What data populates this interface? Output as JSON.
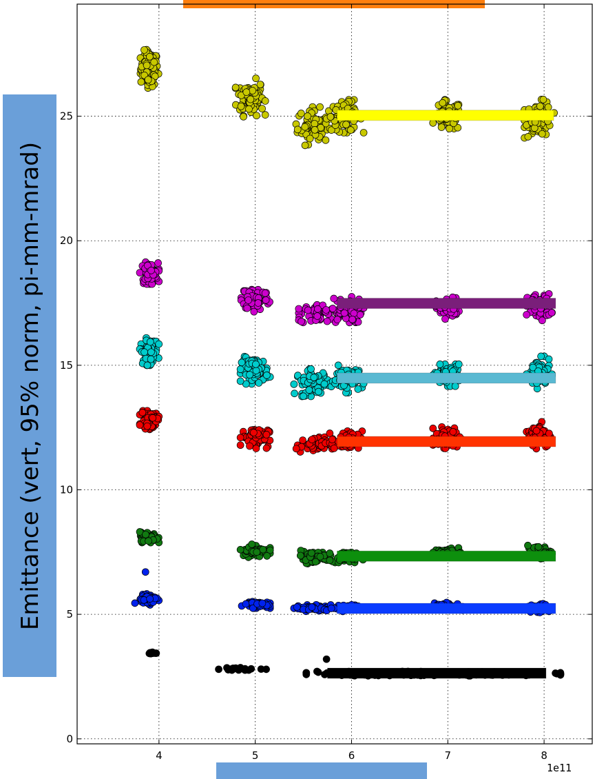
{
  "chart_data": {
    "type": "scatter",
    "xlabel": "",
    "ylabel": "Emittance (vert, 95% norm, pi-mm-mrad)",
    "x_multiplier_label": "1e11",
    "xlim": [
      3.15,
      8.5
    ],
    "ylim": [
      -0.2,
      29.5
    ],
    "xticks": [
      4,
      5,
      6,
      7,
      8
    ],
    "yticks": [
      0,
      5,
      10,
      15,
      20,
      25
    ],
    "grid": true,
    "colors": {
      "ylabel_box": "#6a9fd9",
      "xlabel_box": "#6a9fd9",
      "title_box": "#ff7f0e"
    },
    "series": [
      {
        "color": "#c8c800",
        "clusters": [
          {
            "x": 3.9,
            "y": 26.9,
            "n": 110,
            "sx": 0.045,
            "sy": 0.35
          },
          {
            "x": 4.95,
            "y": 25.75,
            "n": 90,
            "sx": 0.07,
            "sy": 0.35
          },
          {
            "x": 5.6,
            "y": 24.6,
            "n": 70,
            "sx": 0.08,
            "sy": 0.35
          },
          {
            "x": 5.95,
            "y": 25.0,
            "n": 90,
            "sx": 0.08,
            "sy": 0.3
          },
          {
            "x": 7.0,
            "y": 25.0,
            "n": 70,
            "sx": 0.07,
            "sy": 0.3
          },
          {
            "x": 7.95,
            "y": 24.9,
            "n": 70,
            "sx": 0.07,
            "sy": 0.35
          }
        ],
        "fit": {
          "x1": 5.85,
          "x2": 8.1,
          "y": 25.05,
          "color": "#ffff00"
        }
      },
      {
        "color": "#cc00cc",
        "clusters": [
          {
            "x": 3.9,
            "y": 18.7,
            "n": 90,
            "sx": 0.045,
            "sy": 0.2
          },
          {
            "x": 5.0,
            "y": 17.7,
            "n": 80,
            "sx": 0.07,
            "sy": 0.25
          },
          {
            "x": 5.65,
            "y": 17.05,
            "n": 50,
            "sx": 0.09,
            "sy": 0.2
          },
          {
            "x": 5.95,
            "y": 17.2,
            "n": 80,
            "sx": 0.08,
            "sy": 0.25
          },
          {
            "x": 7.0,
            "y": 17.3,
            "n": 60,
            "sx": 0.06,
            "sy": 0.2
          },
          {
            "x": 7.95,
            "y": 17.35,
            "n": 70,
            "sx": 0.06,
            "sy": 0.25
          }
        ],
        "fit": {
          "x1": 5.85,
          "x2": 8.12,
          "y": 17.5,
          "color": "#7a1f7a"
        }
      },
      {
        "color": "#00cccc",
        "clusters": [
          {
            "x": 3.9,
            "y": 15.55,
            "n": 80,
            "sx": 0.045,
            "sy": 0.25
          },
          {
            "x": 5.0,
            "y": 14.8,
            "n": 80,
            "sx": 0.07,
            "sy": 0.25
          },
          {
            "x": 5.6,
            "y": 14.3,
            "n": 60,
            "sx": 0.09,
            "sy": 0.25
          },
          {
            "x": 5.95,
            "y": 14.45,
            "n": 70,
            "sx": 0.08,
            "sy": 0.25
          },
          {
            "x": 7.0,
            "y": 14.6,
            "n": 70,
            "sx": 0.07,
            "sy": 0.2
          },
          {
            "x": 7.95,
            "y": 14.7,
            "n": 70,
            "sx": 0.06,
            "sy": 0.3
          }
        ],
        "fit": {
          "x1": 5.85,
          "x2": 8.12,
          "y": 14.5,
          "color": "#5ab9d2"
        }
      },
      {
        "color": "#ee0000",
        "clusters": [
          {
            "x": 3.9,
            "y": 12.8,
            "n": 70,
            "sx": 0.045,
            "sy": 0.17
          },
          {
            "x": 5.0,
            "y": 12.1,
            "n": 70,
            "sx": 0.07,
            "sy": 0.2
          },
          {
            "x": 5.6,
            "y": 11.8,
            "n": 50,
            "sx": 0.09,
            "sy": 0.15
          },
          {
            "x": 5.95,
            "y": 11.95,
            "n": 60,
            "sx": 0.08,
            "sy": 0.2
          },
          {
            "x": 7.0,
            "y": 12.1,
            "n": 60,
            "sx": 0.07,
            "sy": 0.2
          },
          {
            "x": 7.95,
            "y": 12.2,
            "n": 70,
            "sx": 0.06,
            "sy": 0.25
          }
        ],
        "fit": {
          "x1": 5.85,
          "x2": 8.12,
          "y": 11.95,
          "color": "#ff3300"
        }
      },
      {
        "color": "#117a11",
        "clusters": [
          {
            "x": 3.9,
            "y": 8.1,
            "n": 70,
            "sx": 0.045,
            "sy": 0.1
          },
          {
            "x": 5.0,
            "y": 7.55,
            "n": 70,
            "sx": 0.07,
            "sy": 0.12
          },
          {
            "x": 5.6,
            "y": 7.3,
            "n": 60,
            "sx": 0.09,
            "sy": 0.12
          },
          {
            "x": 5.95,
            "y": 7.3,
            "n": 60,
            "sx": 0.08,
            "sy": 0.1
          },
          {
            "x": 7.0,
            "y": 7.45,
            "n": 60,
            "sx": 0.07,
            "sy": 0.1
          },
          {
            "x": 7.95,
            "y": 7.5,
            "n": 60,
            "sx": 0.06,
            "sy": 0.12
          }
        ],
        "fit": {
          "x1": 5.85,
          "x2": 8.12,
          "y": 7.35,
          "color": "#0d8f0d"
        }
      },
      {
        "color": "#0022ee",
        "clusters": [
          {
            "x": 3.9,
            "y": 5.6,
            "n": 60,
            "sx": 0.045,
            "sy": 0.1
          },
          {
            "x": 5.0,
            "y": 5.4,
            "n": 60,
            "sx": 0.07,
            "sy": 0.07
          },
          {
            "x": 5.6,
            "y": 5.25,
            "n": 60,
            "sx": 0.09,
            "sy": 0.06
          },
          {
            "x": 5.95,
            "y": 5.25,
            "n": 50,
            "sx": 0.08,
            "sy": 0.06
          },
          {
            "x": 7.0,
            "y": 5.3,
            "n": 50,
            "sx": 0.07,
            "sy": 0.08
          },
          {
            "x": 7.95,
            "y": 5.25,
            "n": 50,
            "sx": 0.06,
            "sy": 0.08
          }
        ],
        "extra_points": [
          {
            "x": 3.86,
            "y": 6.7
          },
          {
            "x": 3.75,
            "y": 5.45
          }
        ],
        "fit": {
          "x1": 5.85,
          "x2": 8.12,
          "y": 5.25,
          "color": "#0a3cff"
        }
      },
      {
        "color": "#000000",
        "clusters": [
          {
            "x": 3.93,
            "y": 3.45,
            "n": 10,
            "sx": 0.025,
            "sy": 0.02
          },
          {
            "x": 4.85,
            "y": 2.8,
            "n": 18,
            "sx": 0.12,
            "sy": 0.03
          },
          {
            "x": 6.85,
            "y": 2.62,
            "n": 260,
            "sx": 0.6,
            "sy": 0.04
          }
        ],
        "extra_points": [
          {
            "x": 5.74,
            "y": 3.2
          }
        ],
        "fit": {
          "x1": 5.75,
          "x2": 8.02,
          "y": 2.65,
          "color": "#000000"
        }
      }
    ]
  }
}
